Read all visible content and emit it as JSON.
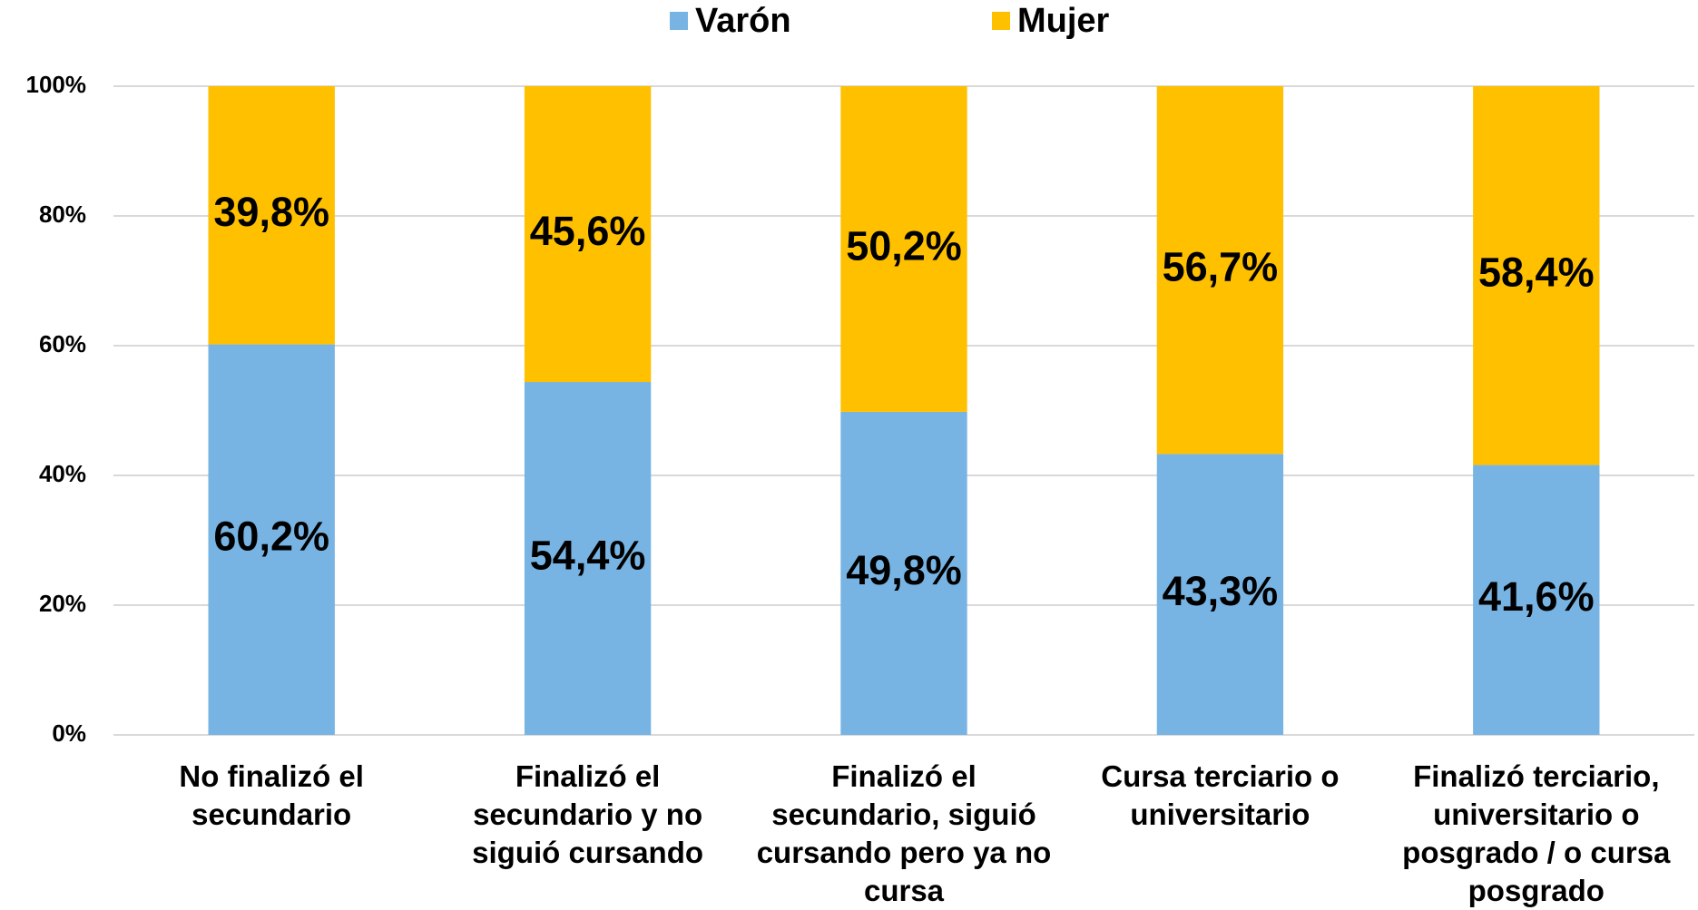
{
  "chart_data": {
    "type": "stacked_bar",
    "categories": [
      "No finalizó el secundario",
      "Finalizó el secundario y no siguió cursando",
      "Finalizó el secundario, siguió cursando pero ya no cursa",
      "Cursa terciario o universitario",
      "Finalizó terciario, universitario o posgrado / o cursa posgrado"
    ],
    "series": [
      {
        "name": "Varón",
        "color": "#77b4e3",
        "values": [
          60.2,
          54.4,
          49.8,
          43.3,
          41.6
        ],
        "value_labels": [
          "60,2%",
          "54,4%",
          "49,8%",
          "43,3%",
          "41,6%"
        ]
      },
      {
        "name": "Mujer",
        "color": "#ffc000",
        "values": [
          39.8,
          45.6,
          50.2,
          56.7,
          58.4
        ],
        "value_labels": [
          "39,8%",
          "45,6%",
          "50,2%",
          "56,7%",
          "58,4%"
        ]
      }
    ],
    "ylim": [
      0,
      100
    ],
    "yticks": [
      {
        "value": 0,
        "label": "0%"
      },
      {
        "value": 20,
        "label": "20%"
      },
      {
        "value": 40,
        "label": "40%"
      },
      {
        "value": 60,
        "label": "60%"
      },
      {
        "value": 80,
        "label": "80%"
      },
      {
        "value": 100,
        "label": "100%"
      }
    ],
    "grid": true,
    "legend": "top"
  }
}
